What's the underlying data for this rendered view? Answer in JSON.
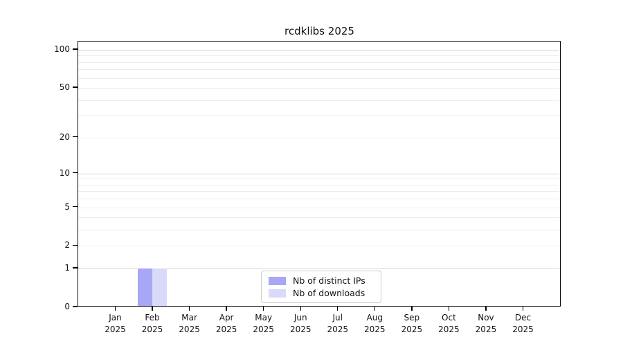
{
  "chart_data": {
    "type": "bar",
    "title": "rcdklibs 2025",
    "categories": [
      "Jan 2025",
      "Feb 2025",
      "Mar 2025",
      "Apr 2025",
      "May 2025",
      "Jun 2025",
      "Jul 2025",
      "Aug 2025",
      "Sep 2025",
      "Oct 2025",
      "Nov 2025",
      "Dec 2025"
    ],
    "series": [
      {
        "name": "Nb of distinct IPs",
        "color": "#a7a7f5",
        "values": [
          0,
          1,
          0,
          0,
          0,
          0,
          0,
          0,
          0,
          0,
          0,
          0
        ]
      },
      {
        "name": "Nb of downloads",
        "color": "#d9d9fa",
        "values": [
          0,
          1,
          0,
          0,
          0,
          0,
          0,
          0,
          0,
          0,
          0,
          0
        ]
      }
    ],
    "xlabel": "",
    "ylabel": "",
    "y_scale": "log1p",
    "ylim": [
      0,
      116
    ],
    "y_ticks": [
      0,
      1,
      2,
      5,
      10,
      20,
      50,
      100
    ],
    "gridlines_minor": [
      2,
      3,
      4,
      5,
      6,
      7,
      8,
      9,
      20,
      30,
      40,
      50,
      60,
      70,
      80,
      90
    ],
    "gridlines_major": [
      1,
      10,
      100
    ],
    "grid": true,
    "legend_position": "lower center",
    "colors": {
      "frame": "#000000",
      "grid_minor": "#ebebeb",
      "grid_major": "#d6d6d6",
      "text": "#111111",
      "legend_border": "#cccccc"
    }
  }
}
